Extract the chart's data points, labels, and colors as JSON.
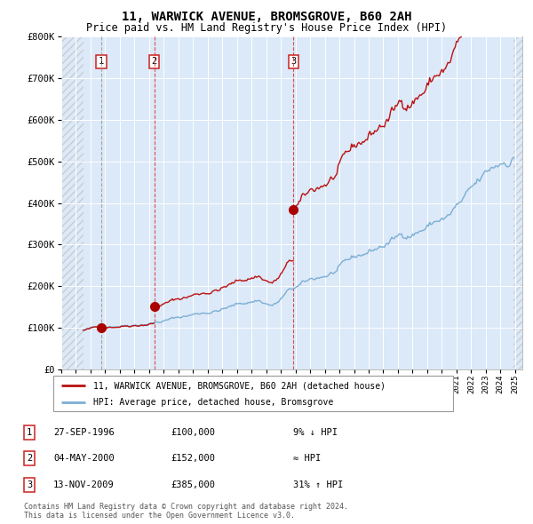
{
  "title": "11, WARWICK AVENUE, BROMSGROVE, B60 2AH",
  "subtitle": "Price paid vs. HM Land Registry's House Price Index (HPI)",
  "ylim": [
    0,
    800000
  ],
  "yticks": [
    0,
    100000,
    200000,
    300000,
    400000,
    500000,
    600000,
    700000,
    800000
  ],
  "ytick_labels": [
    "£0",
    "£100K",
    "£200K",
    "£300K",
    "£400K",
    "£500K",
    "£600K",
    "£700K",
    "£800K"
  ],
  "background_color": "#dce9f8",
  "hatch_left_end": 1995.5,
  "hatch_right_start": 2024.92,
  "sale_dates": [
    1996.74,
    2000.35,
    2009.87
  ],
  "sale_prices": [
    100000,
    152000,
    385000
  ],
  "sale_labels": [
    "1",
    "2",
    "3"
  ],
  "vline_color": "#dd3333",
  "sale_marker_color": "#aa0000",
  "hpi_line_color": "#7bafd4",
  "price_line_color": "#bb1111",
  "legend_label_price": "11, WARWICK AVENUE, BROMSGROVE, B60 2AH (detached house)",
  "legend_label_hpi": "HPI: Average price, detached house, Bromsgrove",
  "table_rows": [
    [
      "1",
      "27-SEP-1996",
      "£100,000",
      "9% ↓ HPI"
    ],
    [
      "2",
      "04-MAY-2000",
      "£152,000",
      "≈ HPI"
    ],
    [
      "3",
      "13-NOV-2009",
      "£385,000",
      "31% ↑ HPI"
    ]
  ],
  "footer": "Contains HM Land Registry data © Crown copyright and database right 2024.\nThis data is licensed under the Open Government Licence v3.0.",
  "xmin": 1994.0,
  "xmax": 2025.5
}
